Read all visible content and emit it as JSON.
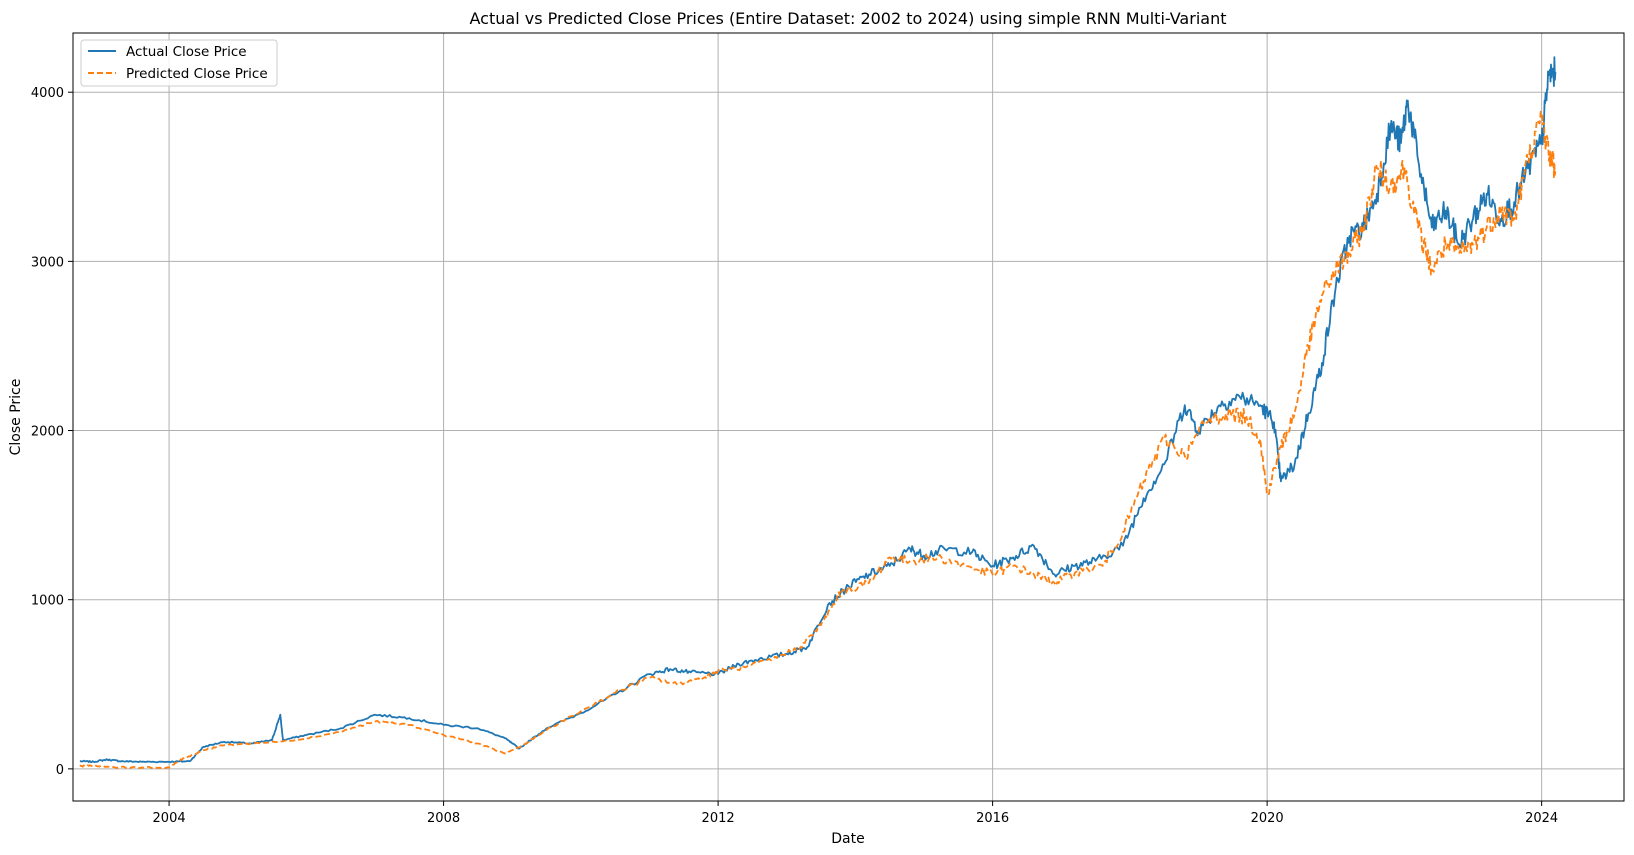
{
  "chart_data": {
    "type": "line",
    "title": "Actual vs Predicted Close Prices (Entire Dataset: 2002 to 2024) using simple RNN Multi-Variant",
    "xlabel": "Date",
    "ylabel": "Close Price",
    "xlim": [
      2002.6,
      2025.2
    ],
    "ylim": [
      -190,
      4350
    ],
    "x_ticks": [
      {
        "value": 2004,
        "label": "2004"
      },
      {
        "value": 2008,
        "label": "2008"
      },
      {
        "value": 2012,
        "label": "2012"
      },
      {
        "value": 2016,
        "label": "2016"
      },
      {
        "value": 2020,
        "label": "2020"
      },
      {
        "value": 2024,
        "label": "2024"
      }
    ],
    "y_ticks": [
      {
        "value": 0,
        "label": "0"
      },
      {
        "value": 1000,
        "label": "1000"
      },
      {
        "value": 2000,
        "label": "2000"
      },
      {
        "value": 3000,
        "label": "3000"
      },
      {
        "value": 4000,
        "label": "4000"
      }
    ],
    "grid": true,
    "legend_position": "top-left",
    "series": [
      {
        "name": "Actual Close Price",
        "color": "#1f77b4",
        "style": "solid",
        "points": [
          [
            2002.7,
            45
          ],
          [
            2002.9,
            42
          ],
          [
            2003.1,
            55
          ],
          [
            2003.3,
            45
          ],
          [
            2003.6,
            42
          ],
          [
            2004.0,
            42
          ],
          [
            2004.3,
            45
          ],
          [
            2004.5,
            130
          ],
          [
            2004.8,
            160
          ],
          [
            2005.2,
            150
          ],
          [
            2005.5,
            170
          ],
          [
            2005.62,
            320
          ],
          [
            2005.66,
            170
          ],
          [
            2006.0,
            200
          ],
          [
            2006.5,
            240
          ],
          [
            2007.0,
            320
          ],
          [
            2007.5,
            300
          ],
          [
            2008.0,
            260
          ],
          [
            2008.5,
            240
          ],
          [
            2008.9,
            180
          ],
          [
            2009.1,
            120
          ],
          [
            2009.5,
            240
          ],
          [
            2010.0,
            330
          ],
          [
            2010.5,
            440
          ],
          [
            2011.0,
            560
          ],
          [
            2011.3,
            590
          ],
          [
            2011.6,
            570
          ],
          [
            2012.0,
            560
          ],
          [
            2012.3,
            620
          ],
          [
            2012.6,
            650
          ],
          [
            2013.0,
            680
          ],
          [
            2013.3,
            720
          ],
          [
            2013.6,
            970
          ],
          [
            2013.9,
            1080
          ],
          [
            2014.2,
            1150
          ],
          [
            2014.5,
            1200
          ],
          [
            2014.8,
            1300
          ],
          [
            2015.0,
            1260
          ],
          [
            2015.3,
            1300
          ],
          [
            2015.7,
            1280
          ],
          [
            2016.0,
            1200
          ],
          [
            2016.3,
            1250
          ],
          [
            2016.6,
            1320
          ],
          [
            2016.9,
            1150
          ],
          [
            2017.2,
            1200
          ],
          [
            2017.5,
            1230
          ],
          [
            2017.9,
            1320
          ],
          [
            2018.2,
            1600
          ],
          [
            2018.5,
            1800
          ],
          [
            2018.8,
            2150
          ],
          [
            2019.0,
            2000
          ],
          [
            2019.3,
            2150
          ],
          [
            2019.6,
            2200
          ],
          [
            2019.9,
            2150
          ],
          [
            2020.1,
            2050
          ],
          [
            2020.2,
            1700
          ],
          [
            2020.4,
            1800
          ],
          [
            2020.6,
            2100
          ],
          [
            2020.8,
            2400
          ],
          [
            2021.0,
            2850
          ],
          [
            2021.2,
            3150
          ],
          [
            2021.4,
            3200
          ],
          [
            2021.6,
            3400
          ],
          [
            2021.8,
            3800
          ],
          [
            2021.95,
            3700
          ],
          [
            2022.05,
            3950
          ],
          [
            2022.2,
            3600
          ],
          [
            2022.4,
            3200
          ],
          [
            2022.6,
            3300
          ],
          [
            2022.8,
            3100
          ],
          [
            2023.0,
            3250
          ],
          [
            2023.2,
            3400
          ],
          [
            2023.4,
            3250
          ],
          [
            2023.6,
            3350
          ],
          [
            2023.8,
            3550
          ],
          [
            2024.0,
            3700
          ],
          [
            2024.1,
            4100
          ],
          [
            2024.2,
            4120
          ]
        ]
      },
      {
        "name": "Predicted Close Price",
        "color": "#ff7f0e",
        "style": "dashed",
        "points": [
          [
            2002.7,
            15
          ],
          [
            2002.9,
            20
          ],
          [
            2003.2,
            10
          ],
          [
            2003.6,
            8
          ],
          [
            2004.0,
            8
          ],
          [
            2004.2,
            60
          ],
          [
            2004.5,
            110
          ],
          [
            2004.8,
            140
          ],
          [
            2005.2,
            150
          ],
          [
            2005.6,
            160
          ],
          [
            2006.0,
            180
          ],
          [
            2006.5,
            220
          ],
          [
            2007.0,
            280
          ],
          [
            2007.5,
            260
          ],
          [
            2008.0,
            200
          ],
          [
            2008.5,
            150
          ],
          [
            2008.9,
            90
          ],
          [
            2009.2,
            150
          ],
          [
            2009.5,
            230
          ],
          [
            2010.0,
            340
          ],
          [
            2010.5,
            450
          ],
          [
            2011.0,
            540
          ],
          [
            2011.4,
            500
          ],
          [
            2011.8,
            540
          ],
          [
            2012.0,
            580
          ],
          [
            2012.4,
            600
          ],
          [
            2012.8,
            650
          ],
          [
            2013.2,
            720
          ],
          [
            2013.5,
            850
          ],
          [
            2013.8,
            1050
          ],
          [
            2014.2,
            1100
          ],
          [
            2014.5,
            1250
          ],
          [
            2014.8,
            1230
          ],
          [
            2015.2,
            1250
          ],
          [
            2015.6,
            1200
          ],
          [
            2016.0,
            1150
          ],
          [
            2016.3,
            1200
          ],
          [
            2016.6,
            1150
          ],
          [
            2016.9,
            1100
          ],
          [
            2017.2,
            1160
          ],
          [
            2017.6,
            1200
          ],
          [
            2017.9,
            1400
          ],
          [
            2018.2,
            1700
          ],
          [
            2018.5,
            1950
          ],
          [
            2018.8,
            1850
          ],
          [
            2019.1,
            2050
          ],
          [
            2019.4,
            2100
          ],
          [
            2019.7,
            2080
          ],
          [
            2019.9,
            1950
          ],
          [
            2020.0,
            1620
          ],
          [
            2020.2,
            1900
          ],
          [
            2020.4,
            2100
          ],
          [
            2020.6,
            2500
          ],
          [
            2020.8,
            2800
          ],
          [
            2021.0,
            2950
          ],
          [
            2021.2,
            3050
          ],
          [
            2021.4,
            3200
          ],
          [
            2021.6,
            3550
          ],
          [
            2021.8,
            3450
          ],
          [
            2022.0,
            3550
          ],
          [
            2022.2,
            3200
          ],
          [
            2022.4,
            2950
          ],
          [
            2022.6,
            3100
          ],
          [
            2022.8,
            3050
          ],
          [
            2023.0,
            3100
          ],
          [
            2023.2,
            3200
          ],
          [
            2023.4,
            3300
          ],
          [
            2023.6,
            3250
          ],
          [
            2023.8,
            3600
          ],
          [
            2024.0,
            3850
          ],
          [
            2024.1,
            3650
          ],
          [
            2024.2,
            3550
          ]
        ]
      }
    ]
  }
}
